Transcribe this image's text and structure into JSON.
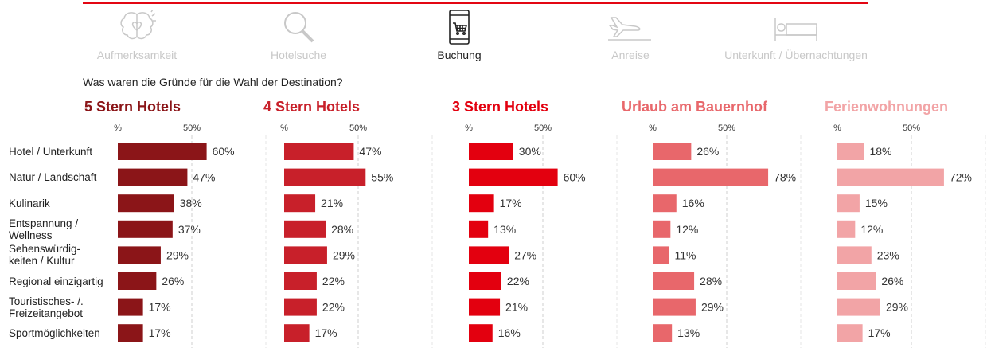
{
  "steps": [
    {
      "label": "Aufmerksamkeit",
      "icon": "brain-heart-icon",
      "active": false
    },
    {
      "label": "Hotelsuche",
      "icon": "magnifier-icon",
      "active": false
    },
    {
      "label": "Buchung",
      "icon": "phone-cart-icon",
      "active": true
    },
    {
      "label": "Anreise",
      "icon": "airplane-icon",
      "active": false
    },
    {
      "label": "Unterkunft / Übernachtungen",
      "icon": "bed-icon",
      "active": false
    }
  ],
  "question": "Was waren die Gründe für die Wahl der Destination?",
  "chart_data": {
    "type": "bar",
    "orientation": "horizontal",
    "categories": [
      "Hotel / Unterkunft",
      "Natur / Landschaft",
      "Kulinarik",
      "Entspannung / Wellness",
      "Sehenswürdig-keiten / Kultur",
      "Regional einzigartig",
      "Touristisches- /. Freizeitangebot",
      "Sportmöglichkeiten"
    ],
    "category_lines": [
      [
        "Hotel / Unterkunft"
      ],
      [
        "Natur / Landschaft"
      ],
      [
        "Kulinarik"
      ],
      [
        "Entspannung /",
        "Wellness"
      ],
      [
        "Sehenswürdig-",
        "keiten / Kultur"
      ],
      [
        "Regional einzigartig"
      ],
      [
        "Touristisches- /.",
        "Freizeitangebot"
      ],
      [
        "Sportmöglichkeiten"
      ]
    ],
    "series": [
      {
        "name": "5 Stern Hotels",
        "color": "#8b1518",
        "values": [
          60,
          47,
          38,
          37,
          29,
          26,
          17,
          17
        ]
      },
      {
        "name": "4 Stern Hotels",
        "color": "#c8202a",
        "values": [
          47,
          55,
          21,
          28,
          29,
          22,
          22,
          17
        ]
      },
      {
        "name": "3 Stern Hotels",
        "color": "#e3000f",
        "values": [
          30,
          60,
          17,
          13,
          27,
          22,
          21,
          16
        ]
      },
      {
        "name": "Urlaub am Bauernhof",
        "color": "#e8676b",
        "values": [
          26,
          78,
          16,
          12,
          11,
          28,
          29,
          13
        ]
      },
      {
        "name": "Ferienwohnungen",
        "color": "#f2a4a6",
        "values": [
          18,
          72,
          15,
          12,
          23,
          26,
          29,
          17
        ]
      }
    ],
    "tick_labels": [
      "%",
      "50%"
    ],
    "xlim": [
      0,
      100
    ],
    "value_suffix": "%",
    "grid": "dashed vertical at 50%"
  }
}
